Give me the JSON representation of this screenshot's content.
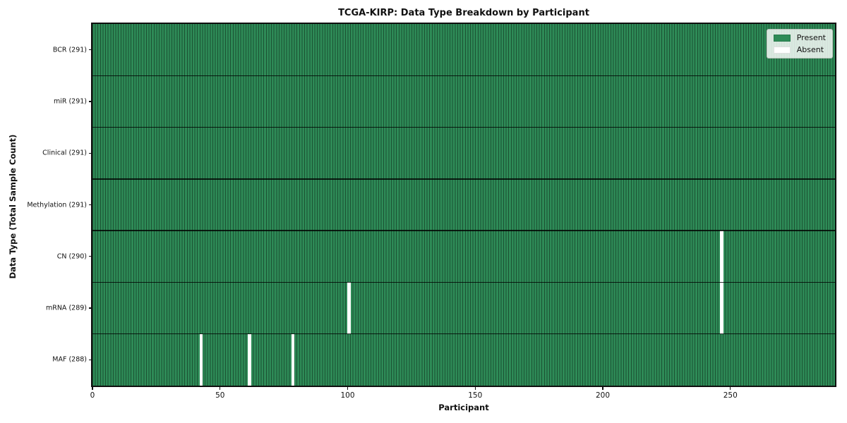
{
  "figure": {
    "title": "TCGA-KIRP: Data Type Breakdown by Participant",
    "xlabel": "Participant",
    "ylabel": "Data Type (Total Sample Count)"
  },
  "legend": {
    "items": [
      {
        "name": "present",
        "label": "Present",
        "color": "#2E8B57"
      },
      {
        "name": "absent",
        "label": "Absent",
        "color": "#FFFFFF"
      }
    ]
  },
  "chart_data": {
    "type": "heatmap",
    "title": "TCGA-KIRP: Data Type Breakdown by Participant",
    "xlabel": "Participant",
    "ylabel": "Data Type (Total Sample Count)",
    "n_participants": 291,
    "x_range": [
      0,
      291
    ],
    "x_ticks": [
      0,
      50,
      100,
      150,
      200,
      250
    ],
    "grid": "row-separators-only",
    "legend_position": "upper right",
    "colors": {
      "present": "#2E8B57",
      "absent": "#FFFFFF",
      "bar_edge": "rgba(0,0,0,0.42)",
      "separator": "rgba(0,0,0,0.8)"
    },
    "rows": [
      {
        "data_type": "BCR",
        "label": "BCR (291)",
        "present_count": 291,
        "absent_participants": []
      },
      {
        "data_type": "miR",
        "label": "miR (291)",
        "present_count": 291,
        "absent_participants": []
      },
      {
        "data_type": "Clinical",
        "label": "Clinical (291)",
        "present_count": 291,
        "absent_participants": []
      },
      {
        "data_type": "Methylation",
        "label": "Methylation (291)",
        "present_count": 291,
        "absent_participants": []
      },
      {
        "data_type": "CN",
        "label": "CN (290)",
        "present_count": 290,
        "absent_participants": [
          246
        ]
      },
      {
        "data_type": "mRNA",
        "label": "mRNA (289)",
        "present_count": 289,
        "absent_participants": [
          100,
          246
        ]
      },
      {
        "data_type": "MAF",
        "label": "MAF (288)",
        "present_count": 288,
        "absent_participants": [
          42,
          61,
          78
        ]
      }
    ]
  }
}
